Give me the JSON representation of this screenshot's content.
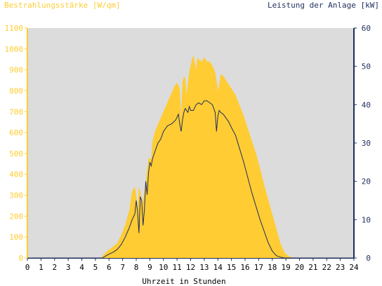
{
  "chart_data": {
    "type": "area",
    "left_axis_title": "Bestrahlungsstärke [W/qm]",
    "right_axis_title": "Leistung der Anlage [kW]",
    "xlabel": "Uhrzeit in Stunden",
    "xlim": [
      0,
      24
    ],
    "ylim_left": [
      0,
      1100
    ],
    "ylim_right": [
      0,
      60
    ],
    "x_ticks": [
      "0",
      "1",
      "2",
      "3",
      "4",
      "5",
      "6",
      "7",
      "8",
      "9",
      "10",
      "11",
      "12",
      "13",
      "14",
      "15",
      "16",
      "17",
      "18",
      "19",
      "20",
      "21",
      "22",
      "23",
      "24"
    ],
    "y_left_ticks": [
      "0",
      "100",
      "200",
      "300",
      "400",
      "500",
      "600",
      "700",
      "800",
      "900",
      "1000",
      "1100"
    ],
    "y_right_ticks": [
      "0",
      "10",
      "20",
      "30",
      "40",
      "50",
      "60"
    ],
    "grid": false,
    "colors": {
      "irradiance": "#FFCC33",
      "power": "#1F2E5C",
      "plot_background": "#DCDCDC",
      "left_axis": "#FFCC33",
      "right_axis": "#1F2E5C"
    },
    "series": [
      {
        "axis": "left",
        "x": [
          0,
          5.4,
          5.6,
          5.8,
          6.0,
          6.3,
          6.6,
          6.9,
          7.2,
          7.5,
          7.7,
          7.9,
          8.0,
          8.1,
          8.2,
          8.3,
          8.4,
          8.5,
          8.6,
          8.7,
          8.8,
          8.9,
          9.0,
          9.1,
          9.2,
          9.4,
          9.6,
          9.8,
          10.0,
          10.2,
          10.4,
          10.6,
          10.8,
          11.0,
          11.2,
          11.3,
          11.4,
          11.5,
          11.6,
          11.7,
          11.8,
          11.9,
          12.0,
          12.1,
          12.2,
          12.3,
          12.4,
          12.5,
          12.6,
          12.8,
          13.0,
          13.2,
          13.4,
          13.6,
          13.8,
          13.9,
          14.0,
          14.1,
          14.2,
          14.4,
          14.6,
          14.8,
          15.0,
          15.3,
          15.6,
          15.9,
          16.2,
          16.5,
          16.8,
          17.1,
          17.4,
          17.7,
          18.0,
          18.3,
          18.6,
          18.9,
          19.2,
          19.5,
          19.8,
          24
        ],
        "values": [
          0,
          0,
          15,
          30,
          40,
          55,
          70,
          110,
          160,
          230,
          320,
          340,
          300,
          240,
          340,
          320,
          240,
          280,
          320,
          360,
          420,
          470,
          480,
          470,
          560,
          610,
          640,
          670,
          700,
          730,
          760,
          790,
          820,
          840,
          810,
          680,
          840,
          870,
          860,
          780,
          840,
          890,
          920,
          950,
          970,
          940,
          900,
          960,
          950,
          940,
          960,
          940,
          940,
          920,
          890,
          850,
          800,
          830,
          880,
          870,
          850,
          830,
          810,
          780,
          730,
          680,
          620,
          560,
          500,
          430,
          350,
          280,
          210,
          140,
          70,
          25,
          8,
          2,
          0,
          0
        ]
      },
      {
        "axis": "right",
        "x": [
          0,
          5.5,
          5.8,
          6.0,
          6.3,
          6.6,
          6.9,
          7.2,
          7.5,
          7.7,
          7.9,
          8.0,
          8.1,
          8.2,
          8.3,
          8.4,
          8.5,
          8.6,
          8.7,
          8.8,
          8.9,
          9.0,
          9.1,
          9.2,
          9.4,
          9.6,
          9.8,
          10.0,
          10.3,
          10.6,
          10.9,
          11.1,
          11.2,
          11.3,
          11.4,
          11.5,
          11.6,
          11.7,
          11.8,
          11.9,
          12.0,
          12.2,
          12.4,
          12.6,
          12.8,
          13.0,
          13.2,
          13.4,
          13.6,
          13.8,
          13.9,
          14.0,
          14.1,
          14.2,
          14.4,
          14.6,
          14.8,
          15.0,
          15.3,
          15.6,
          15.9,
          16.2,
          16.5,
          16.8,
          17.1,
          17.4,
          17.7,
          18.0,
          18.3,
          18.6,
          18.9,
          19.2,
          19.5,
          24
        ],
        "values": [
          0,
          0,
          0.6,
          1.0,
          1.5,
          2.2,
          3.5,
          5.5,
          8.0,
          10.0,
          11.5,
          15.0,
          12.0,
          6.5,
          16.0,
          15.0,
          8.5,
          12.5,
          20.0,
          16.5,
          22.0,
          25.0,
          24.0,
          26.0,
          28.0,
          30.0,
          31.0,
          33.0,
          34.5,
          35.0,
          36.0,
          37.5,
          35.0,
          33.0,
          36.0,
          38.0,
          39.0,
          38.5,
          38.0,
          39.5,
          38.5,
          38.5,
          40.0,
          40.5,
          40.0,
          41.0,
          41.0,
          40.5,
          40.0,
          38.0,
          33.0,
          37.0,
          38.5,
          38.0,
          37.5,
          36.5,
          35.5,
          34.0,
          32.0,
          28.5,
          25.0,
          21.0,
          17.0,
          13.5,
          10.0,
          7.0,
          4.0,
          1.8,
          0.6,
          0.2,
          0,
          0,
          0,
          0
        ]
      }
    ]
  }
}
